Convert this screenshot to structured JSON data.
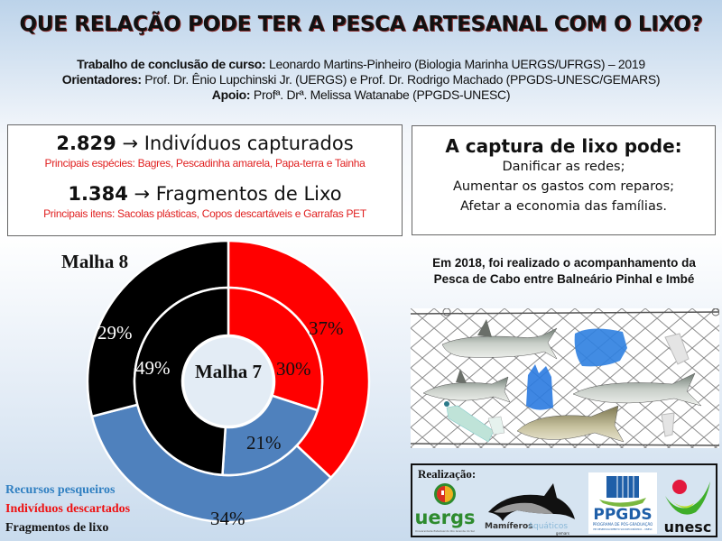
{
  "title": "QUE RELAÇÃO PODE TER A PESCA ARTESANAL COM O LIXO?",
  "credits": [
    {
      "label": "Trabalho de conclusão de curso:",
      "text": " Leonardo Martins-Pinheiro (Biologia Marinha UERGS/UFRGS) – 2019"
    },
    {
      "label": "Orientadores:",
      "text": " Prof. Dr. Ênio Lupchinski Jr. (UERGS) e Prof. Dr. Rodrigo Machado (PPGDS-UNESC/GEMARS)"
    },
    {
      "label": "Apoio:",
      "text": " Profª. Drª. Melissa Watanabe (PPGDS-UNESC)"
    }
  ],
  "stats": {
    "captured_number": "2.829",
    "captured_label": " → Indivíduos capturados",
    "captured_detail": "Principais espécies: Bagres, Pescadinha amarela, Papa-terra e Tainha",
    "trash_number": "1.384",
    "trash_label": " → Fragmentos de Lixo",
    "trash_detail": "Principais itens: Sacolas plásticas, Copos descartáveis e Garrafas PET"
  },
  "impact": {
    "title": "A captura de lixo pode:",
    "items": [
      "Danificar as redes;",
      "Aumentar os gastos com reparos;",
      "Afetar a economia das famílias."
    ]
  },
  "note": {
    "line1": "Em 2018, foi realizado o acompanhamento da",
    "line2": "Pesca de Cabo entre Balneário Pinhal e Imbé"
  },
  "realizacao": {
    "label": "Realização:",
    "logos": [
      {
        "name": "uergs",
        "text": "uergs",
        "subtext": "Universidade Estadual do Rio Grande do Sul"
      },
      {
        "name": "mamiferos-aquaticos",
        "text1": "Mamíferos",
        "text2": "Aquáticos",
        "subtext": "gemars"
      },
      {
        "name": "ppgds",
        "text": "PPGDS",
        "subtext": "PROGRAMA DE PÓS-GRADUAÇÃO",
        "subtext2": "EM DESENVOLVIMENTO SOCIOECONÔMICO – UNESC"
      },
      {
        "name": "unesc",
        "text": "unesc"
      }
    ]
  },
  "colors": {
    "recursos": "#4f81bd",
    "descartados": "#ff0000",
    "lixo": "#000000",
    "legend_recursos": "#2f7fc1",
    "legend_descartados": "#ee1111"
  },
  "chart_data": {
    "type": "pie",
    "subtype": "double-donut",
    "title": "",
    "categories": [
      "Indivíduos descartados",
      "Recursos pesqueiros",
      "Fragmentos de lixo"
    ],
    "series": [
      {
        "name": "Malha 8",
        "ring": "outer",
        "values": [
          37,
          34,
          29
        ]
      },
      {
        "name": "Malha 7",
        "ring": "inner",
        "values": [
          30,
          21,
          49
        ]
      }
    ],
    "labels": {
      "outer_ring": "Malha 8",
      "inner_ring": "Malha 7"
    },
    "legend": [
      "Recursos pesqueiros",
      "Indivíduos descartados",
      "Fragmentos de lixo"
    ],
    "legend_position": "bottom-left",
    "unit": "%"
  }
}
